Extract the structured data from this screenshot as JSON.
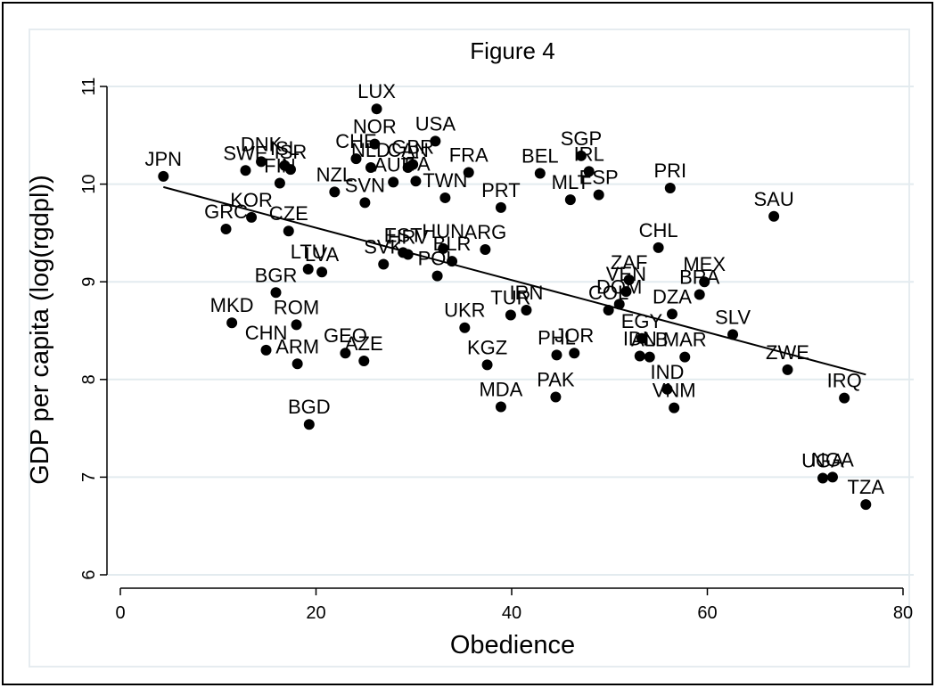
{
  "chart_data": {
    "type": "scatter",
    "title": "Figure 4",
    "x_label": "Obedience",
    "y_label": "GDP per capita (log(rgdpl))",
    "color": "#000000",
    "grid": true,
    "xlim": [
      0,
      80
    ],
    "ylim": [
      6,
      11
    ],
    "xticks": [
      0,
      20,
      40,
      60,
      80
    ],
    "yticks": [
      6,
      7,
      8,
      9,
      10,
      11
    ],
    "labels": [
      "JPN",
      "SWE",
      "DNK",
      "FIN",
      "ISL",
      "ISR",
      "NZL",
      "CHE",
      "LUX",
      "NOR",
      "NLD",
      "AUT",
      "CAN",
      "GBR",
      "ITA",
      "USA",
      "SVN",
      "FRA",
      "TWN",
      "BEL",
      "SGP",
      "IRL",
      "ESP",
      "MLT",
      "PRT",
      "PRI",
      "SAU",
      "KOR",
      "GRC",
      "CZE",
      "CHL",
      "ARG",
      "HUN",
      "LTU",
      "LVA",
      "SVK",
      "EST",
      "HRV",
      "POL",
      "BLR",
      "BGR",
      "MEX",
      "BRA",
      "ZAF",
      "VEN",
      "DOM",
      "COL",
      "DZA",
      "IRN",
      "TUR",
      "UKR",
      "MKD",
      "ROM",
      "CHN",
      "ARM",
      "GEO",
      "AZE",
      "SLV",
      "EGY",
      "IDN",
      "ALB",
      "PHL",
      "JOR",
      "MAR",
      "KGZ",
      "ZWE",
      "IND",
      "VNM",
      "IRQ",
      "PAK",
      "MDA",
      "BGD",
      "UGA",
      "NGA",
      "TZA"
    ],
    "x": [
      4.4,
      12.8,
      14.4,
      16.3,
      16.8,
      17.4,
      21.9,
      24.1,
      26.2,
      26.0,
      25.6,
      27.9,
      29.4,
      29.9,
      30.2,
      32.2,
      25.0,
      35.6,
      33.2,
      42.9,
      47.1,
      47.9,
      48.9,
      46.0,
      38.9,
      56.2,
      66.8,
      13.4,
      10.8,
      17.2,
      55.0,
      37.3,
      33.0,
      19.2,
      20.6,
      26.9,
      28.9,
      29.4,
      32.4,
      33.9,
      15.9,
      59.7,
      59.2,
      52.0,
      51.7,
      51.0,
      49.9,
      56.4,
      41.5,
      39.9,
      35.2,
      11.4,
      18.0,
      14.9,
      18.1,
      23.0,
      24.9,
      62.6,
      53.3,
      53.1,
      54.1,
      44.6,
      46.4,
      57.7,
      37.5,
      68.2,
      55.9,
      56.6,
      74.0,
      44.5,
      38.9,
      19.3,
      71.8,
      72.8,
      76.2
    ],
    "y": [
      10.08,
      10.14,
      10.23,
      10.01,
      10.19,
      10.15,
      9.92,
      10.26,
      10.77,
      10.41,
      10.17,
      10.02,
      10.17,
      10.2,
      10.03,
      10.44,
      9.81,
      10.12,
      9.86,
      10.11,
      10.29,
      10.13,
      9.89,
      9.84,
      9.76,
      9.96,
      9.67,
      9.66,
      9.54,
      9.52,
      9.35,
      9.33,
      9.34,
      9.13,
      9.1,
      9.18,
      9.3,
      9.28,
      9.06,
      9.21,
      8.89,
      9.0,
      8.87,
      9.02,
      8.9,
      8.77,
      8.71,
      8.67,
      8.71,
      8.66,
      8.53,
      8.58,
      8.56,
      8.3,
      8.16,
      8.27,
      8.19,
      8.46,
      8.42,
      8.24,
      8.23,
      8.25,
      8.27,
      8.23,
      8.15,
      8.1,
      7.9,
      7.71,
      7.81,
      7.82,
      7.72,
      7.54,
      6.99,
      7.0,
      6.72
    ],
    "fit_line": {
      "x": [
        4.4,
        76.2
      ],
      "y": [
        9.97,
        8.05
      ]
    }
  }
}
